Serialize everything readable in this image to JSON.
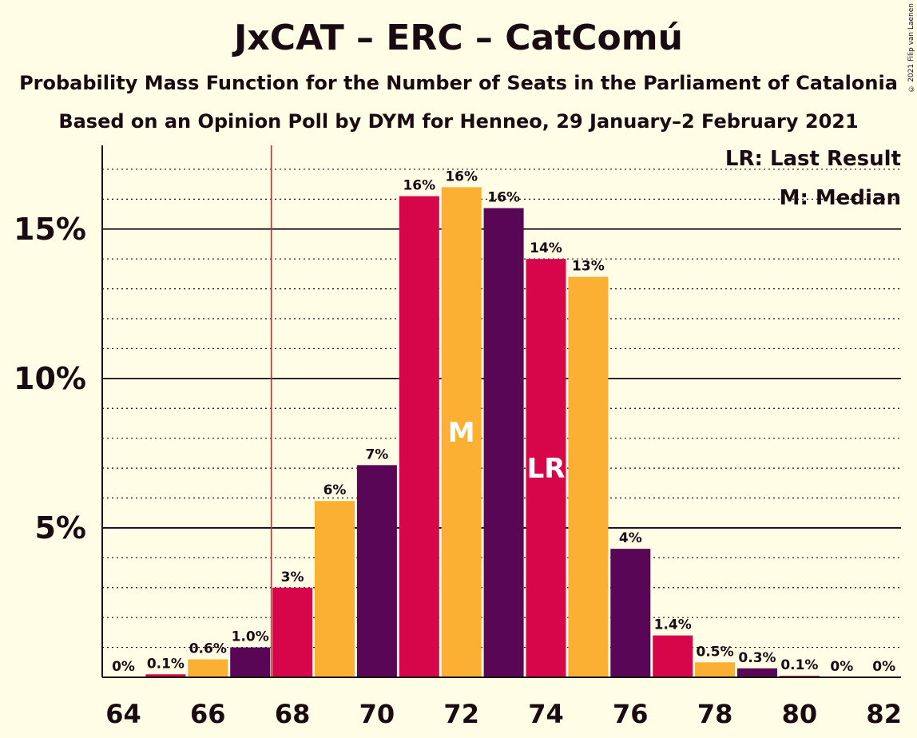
{
  "title": "JxCAT – ERC – CatComú",
  "subtitle": "Probability Mass Function for the Number of Seats in the Parliament of Catalonia",
  "subtitle2": "Based on an Opinion Poll by DYM for Henneo, 29 January–2 February 2021",
  "copyright": "© 2021 Filip van Laenen",
  "legend": {
    "last_result": "LR: Last Result",
    "median": "M: Median"
  },
  "colors": {
    "background": "#FFFDE6",
    "series": [
      "#5A0656",
      "#D7064A",
      "#FBB033"
    ],
    "majority_line": "#E41E26"
  },
  "chart_data": {
    "type": "bar",
    "title": "JxCAT – ERC – CatComú",
    "xlabel": "",
    "ylabel": "",
    "x": [
      64,
      65,
      66,
      67,
      68,
      69,
      70,
      71,
      72,
      73,
      74,
      75,
      76,
      77,
      78,
      79,
      80,
      81,
      82
    ],
    "values": [
      0,
      0.1,
      0.6,
      1.0,
      3.0,
      5.9,
      7.1,
      16.1,
      16.4,
      15.7,
      14.0,
      13.4,
      4.3,
      1.4,
      0.5,
      0.3,
      0.05,
      0,
      0
    ],
    "labels": [
      "0%",
      "0.1%",
      "0.6%",
      "1.0%",
      "3%",
      "6%",
      "7%",
      "16%",
      "16%",
      "16%",
      "14%",
      "13%",
      "4%",
      "1.4%",
      "0.5%",
      "0.3%",
      "0.1%",
      "0%",
      "0%"
    ],
    "x_tick_labels": [
      "64",
      "66",
      "68",
      "70",
      "72",
      "74",
      "76",
      "78",
      "80",
      "82"
    ],
    "y_ticks": [
      5,
      10,
      15
    ],
    "y_tick_labels": [
      "5%",
      "10%",
      "15%"
    ],
    "ylim": [
      0,
      17.8
    ],
    "majority_line_x": 67.5,
    "median": 72,
    "median_label": "M",
    "last_result": 74,
    "last_result_label": "LR",
    "grid": true
  }
}
